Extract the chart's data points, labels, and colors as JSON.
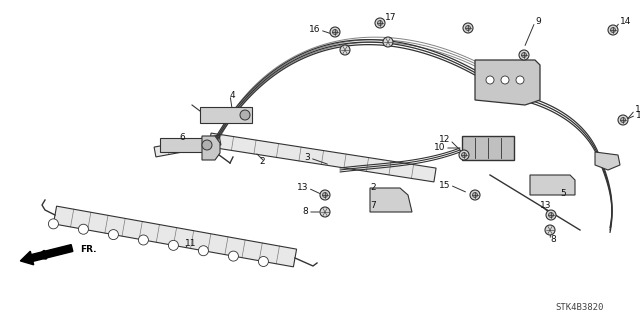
{
  "bg_color": "#ffffff",
  "part_color": "#333333",
  "line_color": "#333333",
  "label_color": "#111111",
  "diagram_id": "STK4B3820",
  "figsize": [
    6.4,
    3.19
  ],
  "dpi": 100
}
